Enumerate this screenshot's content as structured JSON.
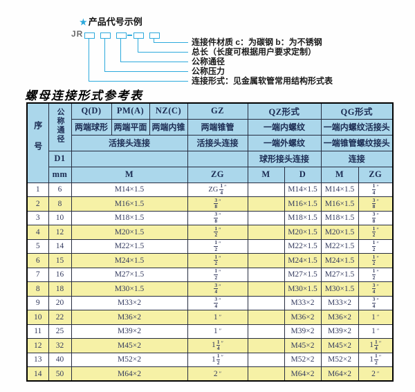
{
  "colors": {
    "accent_cyan": "#2BA9DC",
    "header_blue": "#ABD7EB",
    "row_yellow": "#F6F1A6",
    "table_text_navy": "#1B2B52"
  },
  "diagram": {
    "star": "★",
    "heading": "产品代号示例",
    "prefix": "JR",
    "labels": [
      "连接件材质  c：为碳钢  b：为不锈钢",
      "总长（长度可根据用户要求定制）",
      "公称通径",
      "公称压力",
      "连接形式：见金属软管常用结构形式表"
    ]
  },
  "table": {
    "title": "螺母连接形式参考表",
    "header": {
      "seq": "序号",
      "dn": "公称通径",
      "d1": "D1",
      "mm": "mm",
      "q_code": "Q(D)",
      "q_desc": "两端球形",
      "pm_code": "PM(A)",
      "pm_desc": "两端平面",
      "nz_code": "NZ(C)",
      "nz_desc": "两端内锥",
      "gz_code": "GZ",
      "gz_desc": "两端锥管",
      "gz_row3": "活接头连接",
      "qpn_row3": "活接头连接",
      "qz_code": "QZ形式",
      "qz_desc": "一端内螺纹",
      "qz_row3": "一端外螺纹",
      "qz_row4": "球形接头连接",
      "qz_m": "M",
      "qz_d": "D",
      "qg_code": "QG形式",
      "qg_desc": "一端内螺纹活接头",
      "qg_row3": "一端锥管螺纹接头",
      "qg_row4": "连接",
      "qg_m": "M",
      "qg_zg": "ZG",
      "m": "M",
      "zg": "ZG"
    },
    "rows": [
      {
        "seq": "1",
        "dn": "6",
        "m": "M14×1.5",
        "gz": {
          "pre": "ZG",
          "num": "1",
          "den": "4"
        },
        "qz_m": "",
        "qz_d": "M14×1.5",
        "qg_m": "M14×1.5",
        "qg_zg": {
          "num": "1",
          "den": "4"
        }
      },
      {
        "seq": "2",
        "dn": "8",
        "m": "M16×1.5",
        "gz": {
          "num": "3",
          "den": "8"
        },
        "qz_m": "",
        "qz_d": "M16×1.5",
        "qg_m": "M16×1.5",
        "qg_zg": {
          "num": "3",
          "den": "8"
        }
      },
      {
        "seq": "3",
        "dn": "10",
        "m": "M18×1.5",
        "gz": {
          "num": "3",
          "den": "8"
        },
        "qz_m": "",
        "qz_d": "M18×1.5",
        "qg_m": "M18×1.5",
        "qg_zg": {
          "num": "3",
          "den": "8"
        }
      },
      {
        "seq": "4",
        "dn": "12",
        "m": "M20×1.5",
        "gz": {
          "num": "1",
          "den": "2"
        },
        "qz_m": "",
        "qz_d": "M20×1.5",
        "qg_m": "M20×1.5",
        "qg_zg": {
          "num": "1",
          "den": "2"
        }
      },
      {
        "seq": "5",
        "dn": "14",
        "m": "M22×1.5",
        "gz": {
          "num": "1",
          "den": "2"
        },
        "qz_m": "",
        "qz_d": "M22×1.5",
        "qg_m": "M22×1.5",
        "qg_zg": {
          "num": "1",
          "den": "2"
        }
      },
      {
        "seq": "6",
        "dn": "15",
        "m": "M24×1.5",
        "gz": {
          "num": "1",
          "den": "2"
        },
        "qz_m": "",
        "qz_d": "M24×1.5",
        "qg_m": "M24×1.5",
        "qg_zg": {
          "num": "1",
          "den": "2"
        }
      },
      {
        "seq": "7",
        "dn": "16",
        "m": "M27×1.5",
        "gz": {
          "num": "1",
          "den": "2"
        },
        "qz_m": "",
        "qz_d": "M27×1.5",
        "qg_m": "M27×1.5",
        "qg_zg": {
          "num": "1",
          "den": "2"
        }
      },
      {
        "seq": "8",
        "dn": "18",
        "m": "M30×1.5",
        "gz": {
          "num": "3",
          "den": "4"
        },
        "qz_m": "",
        "qz_d": "M30×1.5",
        "qg_m": "M30×1.5",
        "qg_zg": {
          "num": "3",
          "den": "4"
        }
      },
      {
        "seq": "9",
        "dn": "20",
        "m": "M33×2",
        "gz": {
          "num": "3",
          "den": "4"
        },
        "qz_m": "",
        "qz_d": "M33×2",
        "qg_m": "M33×2",
        "qg_zg": {
          "num": "3",
          "den": "4"
        }
      },
      {
        "seq": "10",
        "dn": "22",
        "m": "M36×2",
        "gz": {
          "whole": "1"
        },
        "qz_m": "",
        "qz_d": "M36×2",
        "qg_m": "M36×2",
        "qg_zg": {
          "whole": "1"
        }
      },
      {
        "seq": "11",
        "dn": "25",
        "m": "M39×2",
        "gz": {
          "whole": "1"
        },
        "qz_m": "",
        "qz_d": "M39×2",
        "qg_m": "M39×2",
        "qg_zg": {
          "whole": "1"
        }
      },
      {
        "seq": "12",
        "dn": "32",
        "m": "M45×2",
        "gz": {
          "whole": "1",
          "num": "1",
          "den": "4"
        },
        "qz_m": "",
        "qz_d": "M45×2",
        "qg_m": "M45×2",
        "qg_zg": {
          "whole": "1",
          "num": "1",
          "den": "4"
        }
      },
      {
        "seq": "13",
        "dn": "40",
        "m": "M52×2",
        "gz": {
          "whole": "1",
          "num": "1",
          "den": "2"
        },
        "qz_m": "",
        "qz_d": "M52×2",
        "qg_m": "M52×2",
        "qg_zg": {
          "whole": "1",
          "num": "1",
          "den": "2"
        }
      },
      {
        "seq": "14",
        "dn": "50",
        "m": "M64×2",
        "gz": {
          "whole": "2"
        },
        "qz_m": "",
        "qz_d": "M64×2",
        "qg_m": "M64×2",
        "qg_zg": {
          "whole": "2"
        }
      }
    ]
  }
}
